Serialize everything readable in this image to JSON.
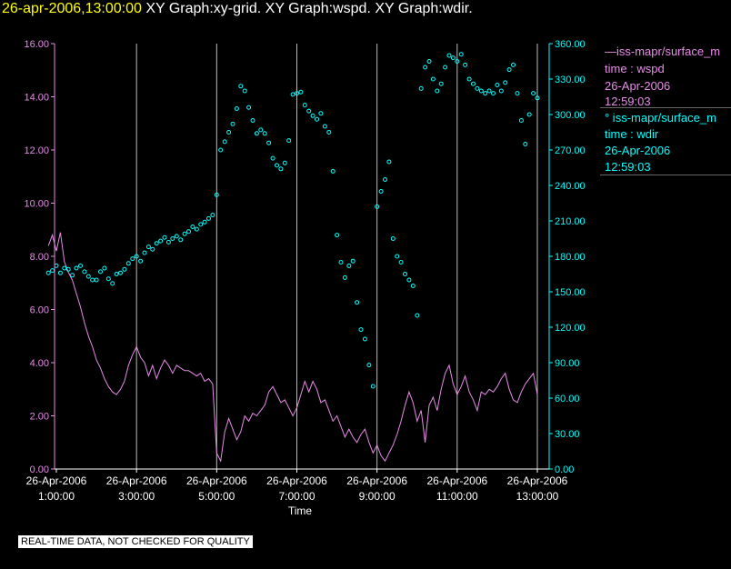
{
  "header": {
    "timestamp": "26-apr-2006,13:00:00",
    "graphs": "XY Graph:xy-grid.  XY Graph:wspd.  XY Graph:wdir."
  },
  "footer": {
    "note": "REAL-TIME DATA, NOT CHECKED FOR QUALITY"
  },
  "legend": [
    {
      "line1": "—iss-mapr/surface_m",
      "line2": "time : wspd",
      "line3": "26-Apr-2006",
      "line4": "12:59:03",
      "color": "#e88ce8"
    },
    {
      "line1": "°  iss-mapr/surface_m",
      "line2": "time : wdir",
      "line3": "26-Apr-2006",
      "line4": "12:59:03",
      "color": "#00ffff"
    }
  ],
  "chart_data": {
    "type": "scatter",
    "xlabel": "Time",
    "x_tick_labels": [
      {
        "date": "26-Apr-2006",
        "time": "1:00:00"
      },
      {
        "date": "26-Apr-2006",
        "time": "3:00:00"
      },
      {
        "date": "26-Apr-2006",
        "time": "5:00:00"
      },
      {
        "date": "26-Apr-2006",
        "time": "7:00:00"
      },
      {
        "date": "26-Apr-2006",
        "time": "9:00:00"
      },
      {
        "date": "26-Apr-2006",
        "time": "11:00:00"
      },
      {
        "date": "26-Apr-2006",
        "time": "13:00:00"
      }
    ],
    "xlim_hours": [
      0.8,
      13.0
    ],
    "vertical_grid_hours": [
      3,
      5,
      7,
      9,
      11,
      13
    ],
    "y_left": {
      "ylim": [
        0,
        16
      ],
      "ticks": [
        "0.00",
        "2.00",
        "4.00",
        "6.00",
        "8.00",
        "10.00",
        "12.00",
        "14.00",
        "16.00"
      ],
      "color": "#e88ce8"
    },
    "y_right": {
      "ylim": [
        0,
        360
      ],
      "ticks": [
        "0.00",
        "30.00",
        "60.00",
        "90.00",
        "120.00",
        "150.00",
        "180.00",
        "210.00",
        "240.00",
        "270.00",
        "300.00",
        "330.00",
        "360.00"
      ],
      "color": "#00ffff"
    },
    "series": [
      {
        "name": "iss-mapr/surface_m time : wspd",
        "type": "line",
        "axis": "left",
        "color": "#e88ce8",
        "points": [
          [
            0.8,
            8.4
          ],
          [
            0.9,
            8.8
          ],
          [
            1.0,
            8.2
          ],
          [
            1.1,
            8.9
          ],
          [
            1.2,
            7.8
          ],
          [
            1.3,
            7.4
          ],
          [
            1.4,
            7.1
          ],
          [
            1.5,
            6.6
          ],
          [
            1.6,
            6.1
          ],
          [
            1.7,
            5.5
          ],
          [
            1.8,
            5.0
          ],
          [
            1.9,
            4.6
          ],
          [
            2.0,
            4.1
          ],
          [
            2.1,
            3.8
          ],
          [
            2.2,
            3.4
          ],
          [
            2.3,
            3.1
          ],
          [
            2.4,
            2.9
          ],
          [
            2.5,
            2.8
          ],
          [
            2.6,
            3.0
          ],
          [
            2.7,
            3.3
          ],
          [
            2.8,
            3.9
          ],
          [
            2.9,
            4.3
          ],
          [
            3.0,
            4.6
          ],
          [
            3.1,
            4.2
          ],
          [
            3.2,
            4.0
          ],
          [
            3.3,
            3.5
          ],
          [
            3.4,
            3.9
          ],
          [
            3.5,
            3.4
          ],
          [
            3.6,
            3.8
          ],
          [
            3.7,
            4.1
          ],
          [
            3.8,
            3.9
          ],
          [
            3.9,
            3.6
          ],
          [
            4.0,
            3.9
          ],
          [
            4.1,
            3.8
          ],
          [
            4.2,
            3.7
          ],
          [
            4.3,
            3.7
          ],
          [
            4.4,
            3.6
          ],
          [
            4.5,
            3.5
          ],
          [
            4.6,
            3.6
          ],
          [
            4.7,
            3.3
          ],
          [
            4.8,
            3.4
          ],
          [
            4.9,
            3.2
          ],
          [
            5.0,
            0.6
          ],
          [
            5.1,
            0.3
          ],
          [
            5.2,
            1.4
          ],
          [
            5.3,
            1.9
          ],
          [
            5.4,
            1.5
          ],
          [
            5.5,
            1.1
          ],
          [
            5.6,
            1.4
          ],
          [
            5.7,
            2.0
          ],
          [
            5.8,
            1.8
          ],
          [
            5.9,
            2.1
          ],
          [
            6.0,
            2.0
          ],
          [
            6.1,
            2.2
          ],
          [
            6.2,
            2.4
          ],
          [
            6.3,
            2.9
          ],
          [
            6.4,
            3.1
          ],
          [
            6.5,
            2.8
          ],
          [
            6.6,
            2.5
          ],
          [
            6.7,
            2.6
          ],
          [
            6.8,
            2.3
          ],
          [
            6.9,
            2.0
          ],
          [
            7.0,
            2.3
          ],
          [
            7.1,
            2.8
          ],
          [
            7.2,
            3.3
          ],
          [
            7.3,
            2.9
          ],
          [
            7.4,
            3.3
          ],
          [
            7.5,
            3.0
          ],
          [
            7.6,
            2.5
          ],
          [
            7.7,
            2.6
          ],
          [
            7.8,
            2.2
          ],
          [
            7.9,
            1.8
          ],
          [
            8.0,
            2.0
          ],
          [
            8.1,
            1.6
          ],
          [
            8.2,
            1.2
          ],
          [
            8.3,
            1.5
          ],
          [
            8.4,
            1.2
          ],
          [
            8.5,
            1.0
          ],
          [
            8.6,
            1.3
          ],
          [
            8.7,
            1.5
          ],
          [
            8.8,
            1.0
          ],
          [
            8.9,
            0.6
          ],
          [
            9.0,
            0.9
          ],
          [
            9.1,
            0.5
          ],
          [
            9.2,
            0.3
          ],
          [
            9.3,
            0.6
          ],
          [
            9.4,
            0.9
          ],
          [
            9.5,
            1.3
          ],
          [
            9.6,
            1.8
          ],
          [
            9.7,
            2.4
          ],
          [
            9.8,
            2.9
          ],
          [
            9.9,
            2.5
          ],
          [
            10.0,
            1.8
          ],
          [
            10.1,
            2.2
          ],
          [
            10.2,
            1.0
          ],
          [
            10.3,
            2.4
          ],
          [
            10.4,
            2.7
          ],
          [
            10.5,
            2.2
          ],
          [
            10.6,
            3.0
          ],
          [
            10.7,
            3.6
          ],
          [
            10.8,
            3.9
          ],
          [
            10.9,
            3.2
          ],
          [
            11.0,
            2.8
          ],
          [
            11.1,
            3.1
          ],
          [
            11.2,
            3.5
          ],
          [
            11.3,
            2.9
          ],
          [
            11.4,
            2.6
          ],
          [
            11.5,
            2.2
          ],
          [
            11.6,
            2.9
          ],
          [
            11.7,
            2.8
          ],
          [
            11.8,
            3.0
          ],
          [
            11.9,
            2.9
          ],
          [
            12.0,
            3.1
          ],
          [
            12.1,
            3.4
          ],
          [
            12.2,
            3.6
          ],
          [
            12.3,
            3.0
          ],
          [
            12.4,
            2.6
          ],
          [
            12.5,
            2.5
          ],
          [
            12.6,
            2.9
          ],
          [
            12.7,
            3.2
          ],
          [
            12.8,
            3.4
          ],
          [
            12.9,
            3.6
          ],
          [
            13.0,
            2.8
          ]
        ]
      },
      {
        "name": "iss-mapr/surface_m time : wdir",
        "type": "scatter",
        "axis": "right",
        "color": "#00ffff",
        "points": [
          [
            0.8,
            166
          ],
          [
            0.9,
            168
          ],
          [
            1.0,
            172
          ],
          [
            1.1,
            166
          ],
          [
            1.2,
            170
          ],
          [
            1.3,
            169
          ],
          [
            1.4,
            164
          ],
          [
            1.5,
            170
          ],
          [
            1.6,
            172
          ],
          [
            1.7,
            167
          ],
          [
            1.8,
            163
          ],
          [
            1.9,
            160
          ],
          [
            2.0,
            160
          ],
          [
            2.1,
            167
          ],
          [
            2.2,
            170
          ],
          [
            2.3,
            161
          ],
          [
            2.4,
            157
          ],
          [
            2.5,
            165
          ],
          [
            2.6,
            166
          ],
          [
            2.7,
            169
          ],
          [
            2.8,
            174
          ],
          [
            2.9,
            178
          ],
          [
            3.0,
            180
          ],
          [
            3.1,
            176
          ],
          [
            3.2,
            183
          ],
          [
            3.3,
            188
          ],
          [
            3.4,
            186
          ],
          [
            3.5,
            191
          ],
          [
            3.6,
            193
          ],
          [
            3.7,
            196
          ],
          [
            3.8,
            192
          ],
          [
            3.9,
            195
          ],
          [
            4.0,
            197
          ],
          [
            4.1,
            194
          ],
          [
            4.2,
            199
          ],
          [
            4.3,
            201
          ],
          [
            4.4,
            205
          ],
          [
            4.5,
            203
          ],
          [
            4.6,
            207
          ],
          [
            4.7,
            209
          ],
          [
            4.8,
            212
          ],
          [
            4.9,
            215
          ],
          [
            5.0,
            232
          ],
          [
            5.1,
            270
          ],
          [
            5.2,
            277
          ],
          [
            5.3,
            285
          ],
          [
            5.4,
            292
          ],
          [
            5.5,
            305
          ],
          [
            5.6,
            324
          ],
          [
            5.7,
            320
          ],
          [
            5.8,
            306
          ],
          [
            5.9,
            295
          ],
          [
            6.0,
            284
          ],
          [
            6.1,
            287
          ],
          [
            6.2,
            284
          ],
          [
            6.3,
            276
          ],
          [
            6.4,
            263
          ],
          [
            6.5,
            257
          ],
          [
            6.6,
            254
          ],
          [
            6.7,
            259
          ],
          [
            6.8,
            278
          ],
          [
            6.9,
            317
          ],
          [
            7.0,
            318
          ],
          [
            7.1,
            319
          ],
          [
            7.2,
            308
          ],
          [
            7.3,
            303
          ],
          [
            7.4,
            299
          ],
          [
            7.5,
            296
          ],
          [
            7.6,
            301
          ],
          [
            7.7,
            290
          ],
          [
            7.8,
            285
          ],
          [
            7.9,
            252
          ],
          [
            8.0,
            198
          ],
          [
            8.1,
            175
          ],
          [
            8.2,
            162
          ],
          [
            8.3,
            172
          ],
          [
            8.4,
            176
          ],
          [
            8.5,
            141
          ],
          [
            8.6,
            118
          ],
          [
            8.7,
            110
          ],
          [
            8.8,
            88
          ],
          [
            8.9,
            70
          ],
          [
            9.0,
            222
          ],
          [
            9.1,
            235
          ],
          [
            9.2,
            245
          ],
          [
            9.3,
            260
          ],
          [
            9.4,
            195
          ],
          [
            9.5,
            180
          ],
          [
            9.6,
            175
          ],
          [
            9.7,
            165
          ],
          [
            9.8,
            160
          ],
          [
            9.9,
            155
          ],
          [
            10.0,
            130
          ],
          [
            10.1,
            322
          ],
          [
            10.2,
            340
          ],
          [
            10.3,
            345
          ],
          [
            10.4,
            330
          ],
          [
            10.5,
            320
          ],
          [
            10.6,
            326
          ],
          [
            10.7,
            340
          ],
          [
            10.8,
            350
          ],
          [
            10.9,
            348
          ],
          [
            11.0,
            345
          ],
          [
            11.1,
            351
          ],
          [
            11.2,
            342
          ],
          [
            11.3,
            330
          ],
          [
            11.4,
            326
          ],
          [
            11.5,
            322
          ],
          [
            11.6,
            320
          ],
          [
            11.7,
            318
          ],
          [
            11.8,
            320
          ],
          [
            11.9,
            318
          ],
          [
            12.0,
            325
          ],
          [
            12.1,
            320
          ],
          [
            12.2,
            327
          ],
          [
            12.3,
            338
          ],
          [
            12.4,
            342
          ],
          [
            12.5,
            318
          ],
          [
            12.6,
            295
          ],
          [
            12.7,
            275
          ],
          [
            12.8,
            300
          ],
          [
            12.9,
            318
          ],
          [
            13.0,
            314
          ]
        ]
      }
    ]
  }
}
